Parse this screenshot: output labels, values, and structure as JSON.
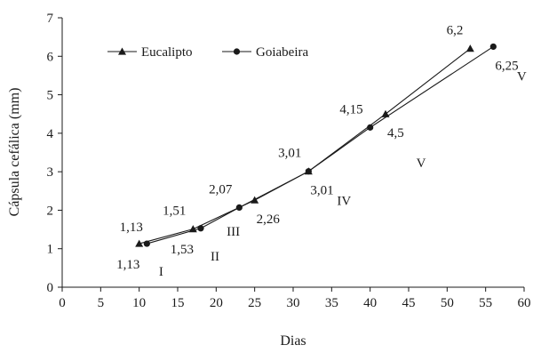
{
  "chart_data": {
    "type": "line",
    "xlabel": "Dias",
    "ylabel": "Cápsula cefálica (mm)",
    "xlim": [
      0,
      60
    ],
    "ylim": [
      0,
      7
    ],
    "xticks": [
      0,
      5,
      10,
      15,
      20,
      25,
      30,
      35,
      40,
      45,
      50,
      55,
      60
    ],
    "yticks": [
      0,
      1,
      2,
      3,
      4,
      5,
      6,
      7
    ],
    "grid": false,
    "legend_position": "top-left",
    "series": [
      {
        "name": "Eucalipto",
        "marker": "triangle",
        "x": [
          10,
          17,
          25,
          32,
          42,
          53
        ],
        "y": [
          1.13,
          1.51,
          2.26,
          3.01,
          4.5,
          6.2
        ]
      },
      {
        "name": "Goiabeira",
        "marker": "circle",
        "x": [
          11,
          18,
          23,
          32,
          40,
          56
        ],
        "y": [
          1.13,
          1.53,
          2.07,
          3.01,
          4.15,
          6.25
        ]
      }
    ],
    "annotations": [
      {
        "text": "1,13",
        "x": 10,
        "y": 1.13,
        "placement": "above"
      },
      {
        "text": "1,51",
        "x": 17,
        "y": 1.51,
        "placement": "above-left"
      },
      {
        "text": "2,07",
        "x": 23,
        "y": 2.07,
        "placement": "above-left"
      },
      {
        "text": "3,01",
        "x": 32,
        "y": 3.01,
        "placement": "above-left"
      },
      {
        "text": "4,15",
        "x": 40,
        "y": 4.15,
        "placement": "above-left"
      },
      {
        "text": "6,2",
        "x": 53,
        "y": 6.2,
        "placement": "above-left"
      },
      {
        "text": "1,13",
        "x": 11,
        "y": 1.13,
        "placement": "below"
      },
      {
        "text": "1,53",
        "x": 18,
        "y": 1.53,
        "placement": "below"
      },
      {
        "text": "2,26",
        "x": 25,
        "y": 2.26,
        "placement": "below-right"
      },
      {
        "text": "3,01",
        "x": 32,
        "y": 3.01,
        "placement": "below-right"
      },
      {
        "text": "4,5",
        "x": 42,
        "y": 4.5,
        "placement": "below-right"
      },
      {
        "text": "6,25",
        "x": 56,
        "y": 6.25,
        "placement": "below-right"
      }
    ],
    "stage_labels": [
      {
        "text": "I",
        "x": 11,
        "y": 1.13
      },
      {
        "text": "II",
        "x": 18,
        "y": 1.53
      },
      {
        "text": "III",
        "x": 25,
        "y": 2.26
      },
      {
        "text": "IV",
        "x": 32,
        "y": 3.01
      },
      {
        "text": "V",
        "x": 42,
        "y": 4.5
      },
      {
        "text": "V",
        "x": 56,
        "y": 6.25
      }
    ]
  }
}
